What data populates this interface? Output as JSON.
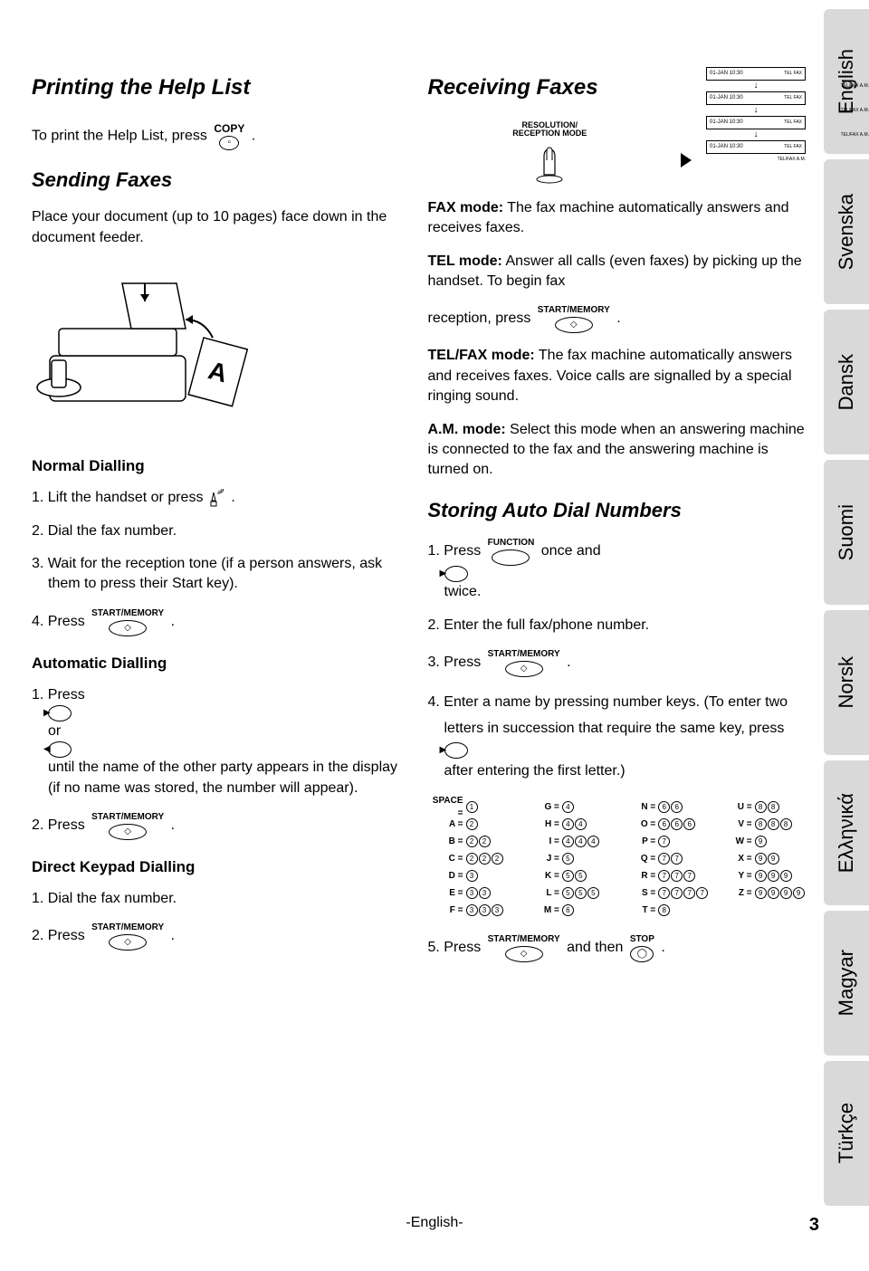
{
  "lang_tabs": [
    "English",
    "Svenska",
    "Dansk",
    "Suomi",
    "Norsk",
    "Ελληνικά",
    "Magyar",
    "Türkçe"
  ],
  "left": {
    "title": "Printing the Help List",
    "print_help_prefix": "To print the Help List, press ",
    "copy_label": "COPY",
    "sending_title": "Sending Faxes",
    "place_doc": "Place your document (up to 10 pages) face down in the document feeder.",
    "normal_dial": "Normal Dialling",
    "step1_prefix": "1. Lift the handset or press ",
    "step2": "2. Dial the fax number.",
    "step3": "3. Wait for the reception tone (if a person answers, ask them to press their Start key).",
    "step4_prefix": "4. Press ",
    "start_memory_label": "START/MEMORY",
    "auto_dial": "Automatic Dialling",
    "auto_step1_a": "1. Press ",
    "auto_step1_b": " or ",
    "auto_step1_c": " until the name of the other party appears in the display (if no name was stored, the number will appear).",
    "auto_step2_prefix": "2. Press ",
    "direct_dial": "Direct Keypad Dialling",
    "direct_step1": "1. Dial the fax number.",
    "direct_step2_prefix": "2. Press "
  },
  "right": {
    "title": "Receiving Faxes",
    "resolution_label_1": "RESOLUTION/",
    "resolution_label_2": "RECEPTION MODE",
    "display_date": "01-JAN 10:30",
    "display_mode_telfax": "TEL FAX",
    "display_mode_telfax_am": "TEL/FAX  A.M.",
    "fax_mode": "FAX mode:",
    "fax_mode_txt": " The fax machine automatically answers and receives faxes.",
    "tel_mode": "TEL mode:",
    "tel_mode_txt": " Answer all calls (even faxes) by picking up the handset. To begin fax",
    "reception_prefix": "reception, press ",
    "telfax_mode": "TEL/FAX mode:",
    "telfax_mode_txt": " The fax machine automatically answers and receives faxes. Voice calls are signalled by a special ringing sound.",
    "am_mode": "A.M. mode:",
    "am_mode_txt": " Select this mode when an answering machine is connected to the fax and the answering machine is turned on.",
    "storing_title": "Storing Auto Dial Numbers",
    "store_step1_a": "1. Press ",
    "function_label": "FUNCTION",
    "store_step1_b": " once and ",
    "store_step1_c": " twice.",
    "store_step2": "2. Enter the full fax/phone number.",
    "store_step3_prefix": "3. Press ",
    "store_step4_a": "4. Enter a name by pressing number keys. (To enter two letters in succession that require the same key, press ",
    "store_step4_b": " after entering the first letter.)",
    "store_step5_a": "5. Press ",
    "store_step5_b": " and then ",
    "stop_label": "STOP"
  },
  "letter_map": {
    "col1": [
      {
        "k": "SPACE =",
        "d": [
          "1"
        ]
      },
      {
        "k": "A =",
        "d": [
          "2"
        ]
      },
      {
        "k": "B =",
        "d": [
          "2",
          "2"
        ]
      },
      {
        "k": "C =",
        "d": [
          "2",
          "2",
          "2"
        ]
      },
      {
        "k": "D =",
        "d": [
          "3"
        ]
      },
      {
        "k": "E =",
        "d": [
          "3",
          "3"
        ]
      },
      {
        "k": "F =",
        "d": [
          "3",
          "3",
          "3"
        ]
      }
    ],
    "col2": [
      {
        "k": "G =",
        "d": [
          "4"
        ]
      },
      {
        "k": "H =",
        "d": [
          "4",
          "4"
        ]
      },
      {
        "k": "I =",
        "d": [
          "4",
          "4",
          "4"
        ]
      },
      {
        "k": "J =",
        "d": [
          "5"
        ]
      },
      {
        "k": "K =",
        "d": [
          "5",
          "5"
        ]
      },
      {
        "k": "L =",
        "d": [
          "5",
          "5",
          "5"
        ]
      },
      {
        "k": "M =",
        "d": [
          "6"
        ]
      }
    ],
    "col3": [
      {
        "k": "N =",
        "d": [
          "6",
          "6"
        ]
      },
      {
        "k": "O =",
        "d": [
          "6",
          "6",
          "6"
        ]
      },
      {
        "k": "P =",
        "d": [
          "7"
        ]
      },
      {
        "k": "Q =",
        "d": [
          "7",
          "7"
        ]
      },
      {
        "k": "R =",
        "d": [
          "7",
          "7",
          "7"
        ]
      },
      {
        "k": "S =",
        "d": [
          "7",
          "7",
          "7",
          "7"
        ]
      },
      {
        "k": "T =",
        "d": [
          "8"
        ]
      }
    ],
    "col4": [
      {
        "k": "U =",
        "d": [
          "8",
          "8"
        ]
      },
      {
        "k": "V =",
        "d": [
          "8",
          "8",
          "8"
        ]
      },
      {
        "k": "W =",
        "d": [
          "9"
        ]
      },
      {
        "k": "X =",
        "d": [
          "9",
          "9"
        ]
      },
      {
        "k": "Y =",
        "d": [
          "9",
          "9",
          "9"
        ]
      },
      {
        "k": "Z =",
        "d": [
          "9",
          "9",
          "9",
          "9"
        ]
      }
    ]
  },
  "footer": {
    "lang": "-English-",
    "page": "3"
  }
}
